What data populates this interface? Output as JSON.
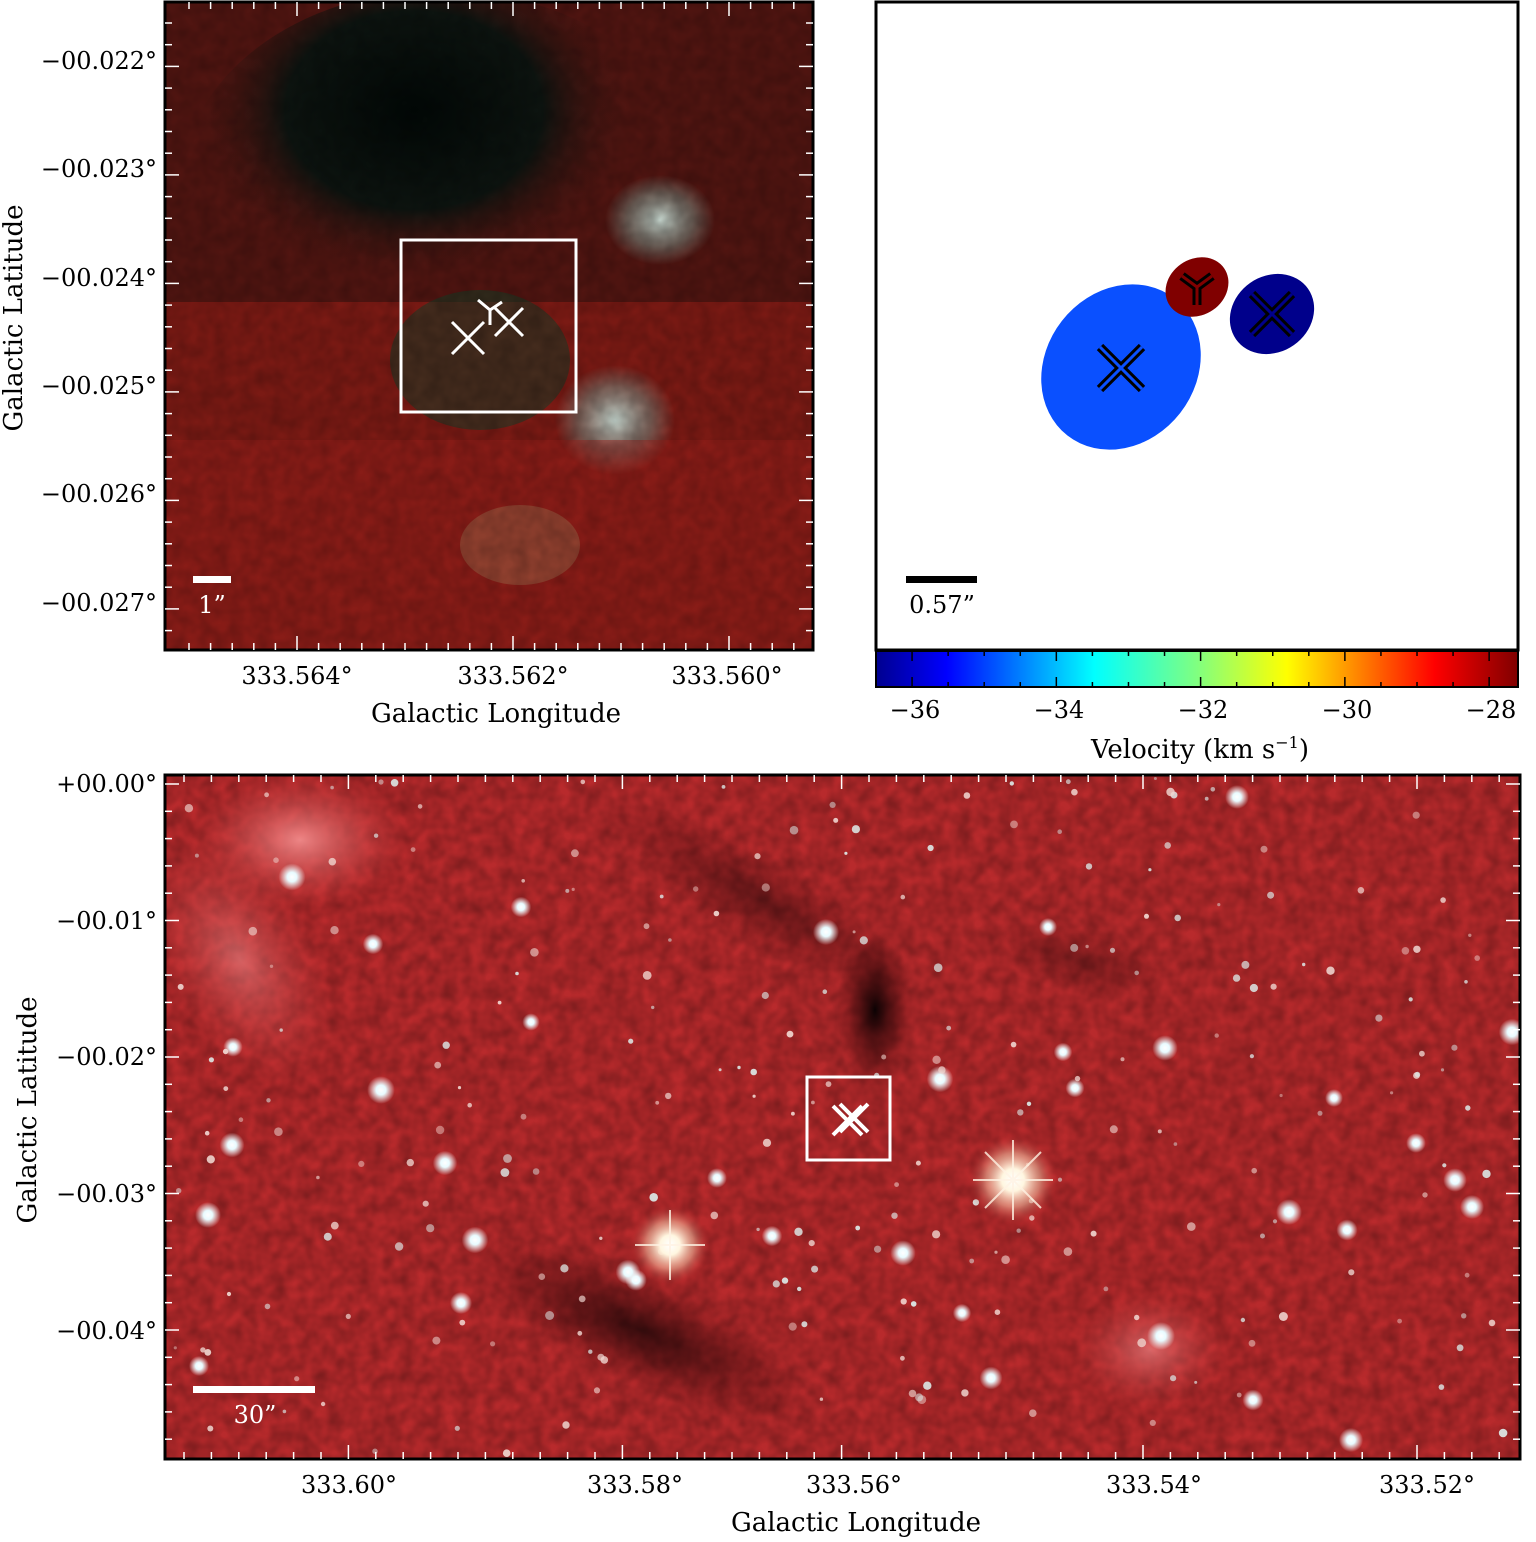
{
  "panel_top_left": {
    "y_ticks": [
      "−00.022°",
      "−00.023°",
      "−00.024°",
      "−00.025°",
      "−00.026°",
      "−00.027°"
    ],
    "x_ticks": [
      "333.564°",
      "333.562°",
      "333.560°"
    ],
    "xlabel": "Galactic Longitude",
    "ylabel": "Galactic Latitude",
    "scalebar_label": "1”"
  },
  "panel_top_right": {
    "scalebar_label": "0.57”",
    "colorbar": {
      "ticks": [
        "−36",
        "−34",
        "−32",
        "−30",
        "−28"
      ],
      "label_main": "Velocity (km s",
      "label_sup": "−1",
      "label_close": ")",
      "range": [
        -36.5,
        -27.6
      ]
    },
    "sources": [
      {
        "marker": "x",
        "velocity": -35.5,
        "color": "#0a50ff"
      },
      {
        "marker": "tri",
        "velocity": -28.0,
        "color": "#800000"
      },
      {
        "marker": "x",
        "velocity": -36.5,
        "color": "#00008b"
      }
    ]
  },
  "panel_bottom": {
    "y_ticks": [
      "+00.00°",
      "−00.01°",
      "−00.02°",
      "−00.03°",
      "−00.04°"
    ],
    "x_ticks": [
      "333.60°",
      "333.58°",
      "333.56°",
      "333.54°",
      "333.52°"
    ],
    "xlabel": "Galactic Longitude",
    "ylabel": "Galactic Latitude",
    "scalebar_label": "30”"
  }
}
